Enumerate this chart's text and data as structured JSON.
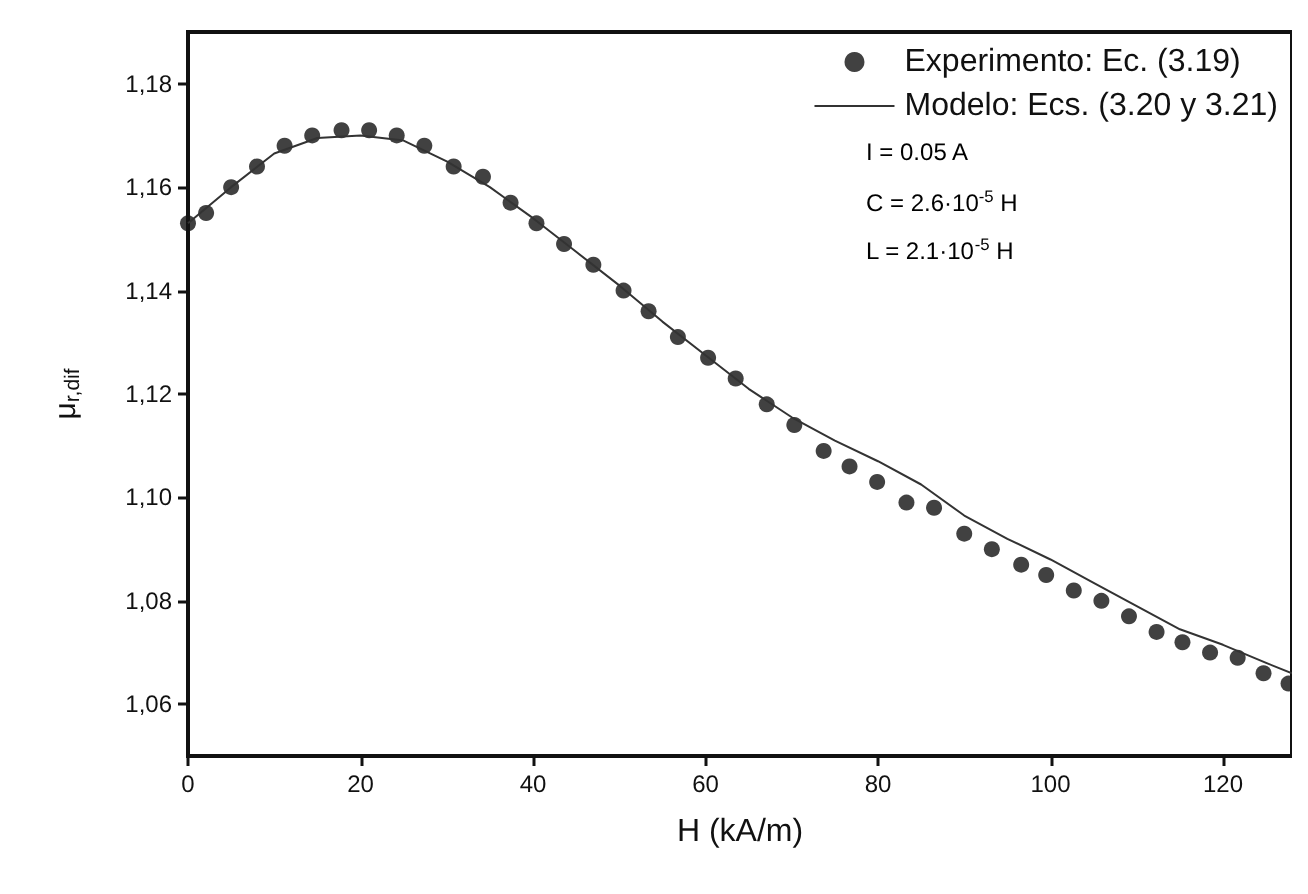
{
  "chart_data": {
    "type": "scatter",
    "xlabel": "H (kA/m)",
    "ylabel": "μ$_{r,dif}$",
    "xlim": [
      0,
      128
    ],
    "xticks": [
      0,
      20,
      40,
      60,
      80,
      100,
      120
    ],
    "ylim": [
      1.05,
      1.19
    ],
    "yticks": [
      {
        "value": 1.06,
        "label": "1,06"
      },
      {
        "value": 1.08,
        "label": "1,08"
      },
      {
        "value": 1.1,
        "label": "1,10"
      },
      {
        "value": 1.12,
        "label": "1,12"
      },
      {
        "value": 1.14,
        "label": "1,14"
      },
      {
        "value": 1.16,
        "label": "1,16"
      },
      {
        "value": 1.18,
        "label": "1,18"
      }
    ],
    "grid": false,
    "legend": "top right",
    "annotations": [
      "I = 0.05 A",
      "C = 2.6·10$^{-5}$ H",
      "L = 2.1·10$^{-5}$ H"
    ],
    "series": [
      {
        "name": "Experimento: Ec. (3.19)",
        "marker": "circle",
        "color": "#111111",
        "x": [
          0,
          2.1,
          5,
          8,
          11.2,
          14.4,
          17.8,
          21,
          24.2,
          27.4,
          30.8,
          34.2,
          37.4,
          40.4,
          43.6,
          47,
          50.5,
          53.4,
          56.8,
          60.3,
          63.5,
          67.1,
          70.3,
          73.7,
          76.7,
          79.9,
          83.3,
          86.5,
          90,
          93.2,
          96.6,
          99.5,
          102.7,
          105.9,
          109.1,
          112.3,
          115.3,
          118.5,
          121.7,
          124.7,
          127.6
        ],
        "values": [
          1.153,
          1.155,
          1.16,
          1.164,
          1.168,
          1.17,
          1.171,
          1.171,
          1.17,
          1.168,
          1.164,
          1.162,
          1.157,
          1.153,
          1.149,
          1.145,
          1.14,
          1.136,
          1.131,
          1.127,
          1.123,
          1.118,
          1.114,
          1.109,
          1.106,
          1.103,
          1.099,
          1.098,
          1.093,
          1.09,
          1.087,
          1.085,
          1.082,
          1.08,
          1.077,
          1.074,
          1.072,
          1.07,
          1.069,
          1.066,
          1.064
        ]
      },
      {
        "name": "Modelo: Ecs. (3.20 y 3.21)",
        "type": "line",
        "marker": "none",
        "line_style": "solid",
        "color": "#333333",
        "x": [
          0,
          5,
          10,
          15,
          20,
          25,
          30,
          35,
          40,
          45,
          50,
          55,
          60,
          65,
          70,
          75,
          80,
          85,
          90,
          95,
          100,
          105,
          110,
          115,
          120,
          125,
          128
        ],
        "values": [
          1.153,
          1.16,
          1.1665,
          1.1695,
          1.17,
          1.169,
          1.165,
          1.16,
          1.154,
          1.1475,
          1.141,
          1.134,
          1.1275,
          1.121,
          1.1155,
          1.111,
          1.107,
          1.1025,
          1.0965,
          1.092,
          1.088,
          1.0835,
          1.079,
          1.0745,
          1.0715,
          1.068,
          1.066
        ]
      }
    ]
  }
}
